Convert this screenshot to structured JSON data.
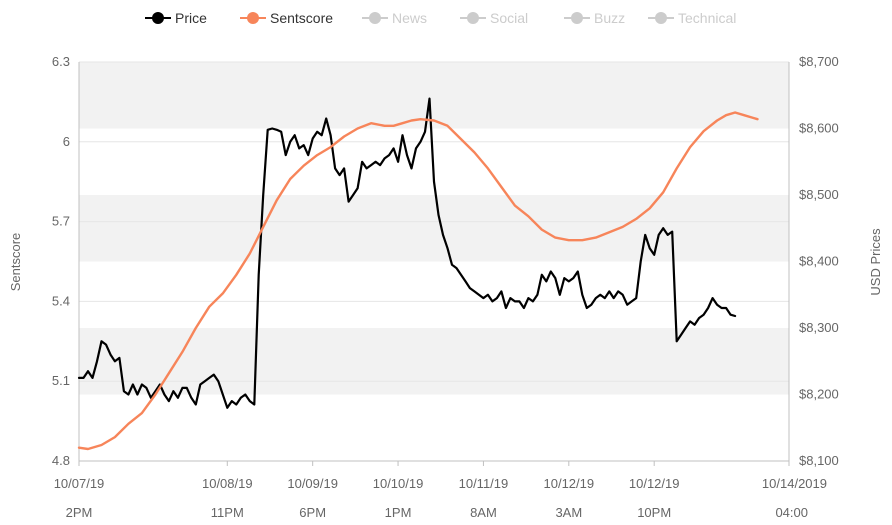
{
  "legend": {
    "items": [
      {
        "label": "Price",
        "color": "#000000",
        "active": true
      },
      {
        "label": "Sentscore",
        "color": "#f7855a",
        "active": true
      },
      {
        "label": "News",
        "color": "#cccccc",
        "active": false
      },
      {
        "label": "Social",
        "color": "#cccccc",
        "active": false
      },
      {
        "label": "Buzz",
        "color": "#cccccc",
        "active": false
      },
      {
        "label": "Technical",
        "color": "#cccccc",
        "active": false
      }
    ]
  },
  "chart_data": {
    "type": "line",
    "xlabel": "",
    "ylabel_left": "Sentscore",
    "ylabel_right": "USD Prices",
    "ylim_left": [
      4.8,
      6.3
    ],
    "ylim_right": [
      8100,
      8700
    ],
    "left_ticks": [
      "4.8",
      "5.1",
      "5.4",
      "5.7",
      "6",
      "6.3"
    ],
    "right_ticks": [
      "$8,100",
      "$8,200",
      "$8,300",
      "$8,400",
      "$8,500",
      "$8,600",
      "$8,700"
    ],
    "x_range_hours": [
      0,
      158
    ],
    "x_ticks": [
      {
        "h": 0,
        "date": "10/07/19",
        "time": "2PM"
      },
      {
        "h": 33,
        "date": "10/08/19",
        "time": "11PM"
      },
      {
        "h": 52,
        "date": "10/09/19",
        "time": "6PM"
      },
      {
        "h": 71,
        "date": "10/10/19",
        "time": "1PM"
      },
      {
        "h": 90,
        "date": "10/11/19",
        "time": "8AM"
      },
      {
        "h": 109,
        "date": "10/12/19",
        "time": "3AM"
      },
      {
        "h": 128,
        "date": "10/12/19",
        "time": "10PM"
      },
      {
        "h": 158,
        "date": "10/14/2019",
        "time": "04:00"
      }
    ],
    "grid": true,
    "legend_position": "top-center",
    "series": [
      {
        "name": "Price",
        "axis": "right",
        "color": "#000000",
        "points": [
          [
            0,
            8225
          ],
          [
            1,
            8225
          ],
          [
            2,
            8235
          ],
          [
            3,
            8225
          ],
          [
            4,
            8250
          ],
          [
            5,
            8280
          ],
          [
            6,
            8275
          ],
          [
            7,
            8260
          ],
          [
            8,
            8250
          ],
          [
            9,
            8255
          ],
          [
            10,
            8205
          ],
          [
            11,
            8200
          ],
          [
            12,
            8215
          ],
          [
            13,
            8200
          ],
          [
            14,
            8215
          ],
          [
            15,
            8210
          ],
          [
            16,
            8195
          ],
          [
            17,
            8205
          ],
          [
            18,
            8215
          ],
          [
            19,
            8200
          ],
          [
            20,
            8190
          ],
          [
            21,
            8205
          ],
          [
            22,
            8195
          ],
          [
            23,
            8210
          ],
          [
            24,
            8210
          ],
          [
            25,
            8195
          ],
          [
            26,
            8185
          ],
          [
            27,
            8215
          ],
          [
            28,
            8220
          ],
          [
            29,
            8225
          ],
          [
            30,
            8230
          ],
          [
            31,
            8220
          ],
          [
            32,
            8200
          ],
          [
            33,
            8180
          ],
          [
            34,
            8190
          ],
          [
            35,
            8185
          ],
          [
            36,
            8195
          ],
          [
            37,
            8200
          ],
          [
            38,
            8190
          ],
          [
            39,
            8185
          ],
          [
            40,
            8380
          ],
          [
            41,
            8500
          ],
          [
            42,
            8598
          ],
          [
            43,
            8600
          ],
          [
            44,
            8598
          ],
          [
            45,
            8595
          ],
          [
            46,
            8560
          ],
          [
            47,
            8580
          ],
          [
            48,
            8590
          ],
          [
            49,
            8570
          ],
          [
            50,
            8575
          ],
          [
            51,
            8560
          ],
          [
            52,
            8585
          ],
          [
            53,
            8595
          ],
          [
            54,
            8590
          ],
          [
            55,
            8615
          ],
          [
            56,
            8590
          ],
          [
            57,
            8540
          ],
          [
            58,
            8530
          ],
          [
            59,
            8540
          ],
          [
            60,
            8490
          ],
          [
            61,
            8500
          ],
          [
            62,
            8510
          ],
          [
            63,
            8550
          ],
          [
            64,
            8540
          ],
          [
            65,
            8545
          ],
          [
            66,
            8550
          ],
          [
            67,
            8545
          ],
          [
            68,
            8555
          ],
          [
            69,
            8560
          ],
          [
            70,
            8570
          ],
          [
            71,
            8550
          ],
          [
            72,
            8590
          ],
          [
            73,
            8560
          ],
          [
            74,
            8540
          ],
          [
            75,
            8570
          ],
          [
            76,
            8580
          ],
          [
            77,
            8595
          ],
          [
            78,
            8645
          ],
          [
            79,
            8520
          ],
          [
            80,
            8470
          ],
          [
            81,
            8440
          ],
          [
            82,
            8420
          ],
          [
            83,
            8395
          ],
          [
            84,
            8390
          ],
          [
            85,
            8380
          ],
          [
            86,
            8370
          ],
          [
            87,
            8360
          ],
          [
            88,
            8355
          ],
          [
            89,
            8350
          ],
          [
            90,
            8345
          ],
          [
            91,
            8350
          ],
          [
            92,
            8340
          ],
          [
            93,
            8345
          ],
          [
            94,
            8355
          ],
          [
            95,
            8330
          ],
          [
            96,
            8345
          ],
          [
            97,
            8340
          ],
          [
            98,
            8340
          ],
          [
            99,
            8330
          ],
          [
            100,
            8345
          ],
          [
            101,
            8340
          ],
          [
            102,
            8350
          ],
          [
            103,
            8380
          ],
          [
            104,
            8370
          ],
          [
            105,
            8385
          ],
          [
            106,
            8375
          ],
          [
            107,
            8350
          ],
          [
            108,
            8375
          ],
          [
            109,
            8370
          ],
          [
            110,
            8375
          ],
          [
            111,
            8385
          ],
          [
            112,
            8350
          ],
          [
            113,
            8330
          ],
          [
            114,
            8335
          ],
          [
            115,
            8345
          ],
          [
            116,
            8350
          ],
          [
            117,
            8345
          ],
          [
            118,
            8355
          ],
          [
            119,
            8345
          ],
          [
            120,
            8355
          ],
          [
            121,
            8350
          ],
          [
            122,
            8335
          ],
          [
            123,
            8340
          ],
          [
            124,
            8345
          ],
          [
            125,
            8400
          ],
          [
            126,
            8440
          ],
          [
            127,
            8420
          ],
          [
            128,
            8410
          ],
          [
            129,
            8440
          ],
          [
            130,
            8450
          ],
          [
            131,
            8440
          ],
          [
            132,
            8445
          ],
          [
            133,
            8280
          ],
          [
            134,
            8290
          ],
          [
            135,
            8300
          ],
          [
            136,
            8310
          ],
          [
            137,
            8305
          ],
          [
            138,
            8315
          ],
          [
            139,
            8320
          ],
          [
            140,
            8330
          ],
          [
            141,
            8345
          ],
          [
            142,
            8335
          ],
          [
            143,
            8330
          ],
          [
            144,
            8330
          ],
          [
            145,
            8320
          ],
          [
            146,
            8318
          ]
        ]
      },
      {
        "name": "Sentscore",
        "axis": "left",
        "color": "#f7855a",
        "points": [
          [
            0,
            4.85
          ],
          [
            2,
            4.845
          ],
          [
            5,
            4.86
          ],
          [
            8,
            4.89
          ],
          [
            11,
            4.94
          ],
          [
            14,
            4.98
          ],
          [
            17,
            5.05
          ],
          [
            20,
            5.13
          ],
          [
            23,
            5.21
          ],
          [
            26,
            5.3
          ],
          [
            29,
            5.38
          ],
          [
            32,
            5.43
          ],
          [
            35,
            5.5
          ],
          [
            38,
            5.58
          ],
          [
            41,
            5.68
          ],
          [
            44,
            5.78
          ],
          [
            47,
            5.86
          ],
          [
            50,
            5.91
          ],
          [
            53,
            5.95
          ],
          [
            56,
            5.98
          ],
          [
            59,
            6.02
          ],
          [
            62,
            6.05
          ],
          [
            65,
            6.07
          ],
          [
            68,
            6.06
          ],
          [
            70,
            6.06
          ],
          [
            72,
            6.07
          ],
          [
            74,
            6.08
          ],
          [
            76,
            6.085
          ],
          [
            79,
            6.08
          ],
          [
            82,
            6.06
          ],
          [
            85,
            6.01
          ],
          [
            88,
            5.96
          ],
          [
            91,
            5.9
          ],
          [
            94,
            5.83
          ],
          [
            97,
            5.76
          ],
          [
            100,
            5.72
          ],
          [
            103,
            5.67
          ],
          [
            106,
            5.64
          ],
          [
            109,
            5.63
          ],
          [
            112,
            5.63
          ],
          [
            115,
            5.64
          ],
          [
            118,
            5.66
          ],
          [
            121,
            5.68
          ],
          [
            124,
            5.71
          ],
          [
            127,
            5.75
          ],
          [
            130,
            5.81
          ],
          [
            133,
            5.9
          ],
          [
            136,
            5.98
          ],
          [
            139,
            6.04
          ],
          [
            142,
            6.08
          ],
          [
            144,
            6.1
          ],
          [
            146,
            6.11
          ],
          [
            148,
            6.1
          ],
          [
            150,
            6.09
          ],
          [
            151,
            6.085
          ]
        ]
      }
    ]
  }
}
